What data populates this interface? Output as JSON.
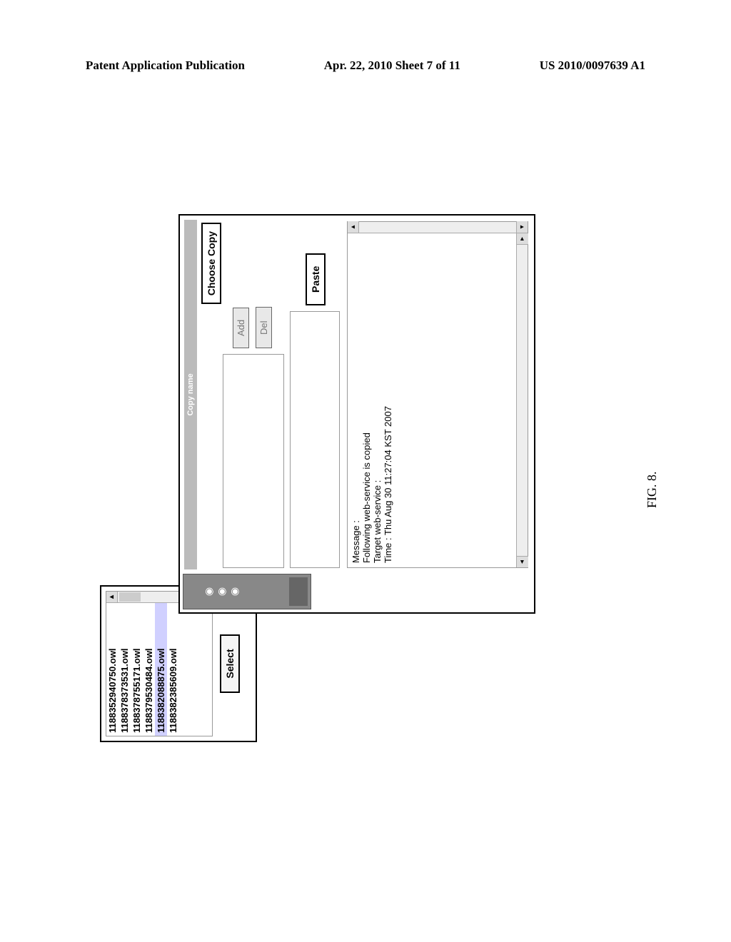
{
  "header": {
    "left": "Patent Application Publication",
    "center": "Apr. 22, 2010  Sheet 7 of 11",
    "right": "US 2010/0097639 A1"
  },
  "figure": {
    "caption": "FIG. 8.",
    "file_list": {
      "items": [
        "1188352940750.owl",
        "1188378373531.owl",
        "1188378755171.owl",
        "1188379530484.owl",
        "1188382088875.owl",
        "1188382385609.owl"
      ],
      "selected_index": 4
    },
    "select_button": "Select",
    "main_header": "Copy name",
    "choose_copy_button": "Choose Copy",
    "add_button": "Add",
    "del_button": "Del",
    "paste_button": "Paste",
    "message": {
      "line1": "Message :",
      "line2": "Following web-service is copied",
      "line3": "Target web-service :",
      "line4": "Time : Thu Aug 30 11:27:04 KST 2007"
    }
  },
  "colors": {
    "page_bg": "#ffffff",
    "border": "#000000",
    "gray_panel": "#888888",
    "selection": "#d0d0ff",
    "disabled_text": "#777777"
  }
}
